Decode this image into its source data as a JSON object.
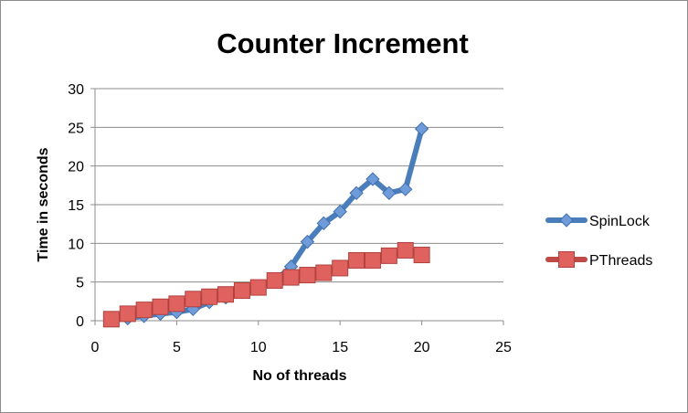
{
  "chart_data": {
    "type": "line",
    "title": "Counter Increment",
    "xlabel": "No of threads",
    "ylabel": "Time in seconds",
    "xlim": [
      0,
      25
    ],
    "ylim": [
      0,
      30
    ],
    "xticks": [
      0,
      5,
      10,
      15,
      20,
      25
    ],
    "yticks": [
      0,
      5,
      10,
      15,
      20,
      25,
      30
    ],
    "grid": "horizontal",
    "legend": "right",
    "series": [
      {
        "name": "SpinLock",
        "color": "#4a7ebb",
        "marker": "diamond",
        "x": [
          1,
          2,
          3,
          4,
          5,
          6,
          7,
          8,
          9,
          10,
          11,
          12,
          13,
          14,
          15,
          16,
          17,
          18,
          19,
          20
        ],
        "y": [
          0.1,
          0.3,
          0.6,
          0.9,
          1.1,
          1.5,
          2.4,
          3.0,
          3.7,
          4.3,
          5.1,
          7.0,
          10.2,
          12.6,
          14.1,
          16.5,
          18.3,
          16.5,
          17.0,
          24.8
        ]
      },
      {
        "name": "PThreads",
        "color": "#be4b48",
        "marker": "square",
        "x": [
          1,
          2,
          3,
          4,
          5,
          6,
          7,
          8,
          9,
          10,
          11,
          12,
          13,
          14,
          15,
          16,
          17,
          18,
          19,
          20
        ],
        "y": [
          0.2,
          0.9,
          1.4,
          1.8,
          2.2,
          2.8,
          3.1,
          3.4,
          3.9,
          4.3,
          5.2,
          5.6,
          5.9,
          6.2,
          6.8,
          7.8,
          7.8,
          8.4,
          9.1,
          8.5
        ]
      }
    ]
  }
}
